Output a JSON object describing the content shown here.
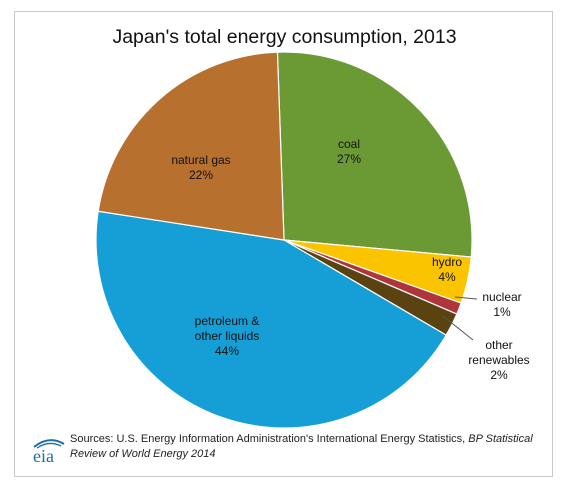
{
  "chart_data": {
    "type": "pie",
    "title": "Japan's total energy consumption, 2013",
    "slices": [
      {
        "label": "coal",
        "value": 27,
        "display": "27%",
        "color": "#6b9a35"
      },
      {
        "label": "hydro",
        "value": 4,
        "display": "4%",
        "color": "#fac400"
      },
      {
        "label": "nuclear",
        "value": 1,
        "display": "1%",
        "color": "#b0343b"
      },
      {
        "label": "other renewables",
        "value": 2,
        "display": "2%",
        "color": "#5a4310"
      },
      {
        "label": "petroleum & other liquids",
        "value": 44,
        "display": "44%",
        "color": "#159fd6"
      },
      {
        "label": "natural gas",
        "value": 22,
        "display": "22%",
        "color": "#b8702e"
      }
    ]
  },
  "source": {
    "prefix": "Sources: U.S. Energy Information Administration's International Energy Statistics, ",
    "italic_part": "BP Statistical Review of World Energy 2014"
  },
  "logo": {
    "text": "eia",
    "color": "#1a6fa8"
  }
}
